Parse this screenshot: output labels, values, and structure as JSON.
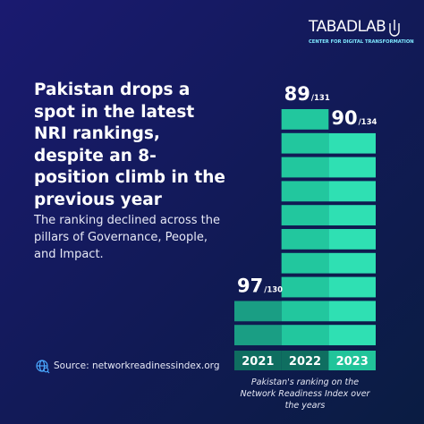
{
  "logo": {
    "name": "TABADLAB",
    "tagline": "CENTER FOR DIGITAL TRANSFORMATION"
  },
  "chart_data": {
    "type": "bar",
    "title": "Pakistan drops a spot in the latest NRI rankings, despite an 8-position climb in the previous year",
    "subtitle": "The ranking declined across the pillars of Governance, People, and Impact.",
    "categories": [
      "2021",
      "2022",
      "2023"
    ],
    "values": [
      97,
      89,
      90
    ],
    "totals_labels": [
      "/130",
      "/131",
      "/134"
    ],
    "colors": [
      "#1a9e84",
      "#22c79e",
      "#2fe0b3"
    ],
    "ylim": [
      99,
      89
    ],
    "caption": "Pakistan's ranking on the Network Readiness Index over the years",
    "source": "Source: networkreadinessindex.org"
  }
}
